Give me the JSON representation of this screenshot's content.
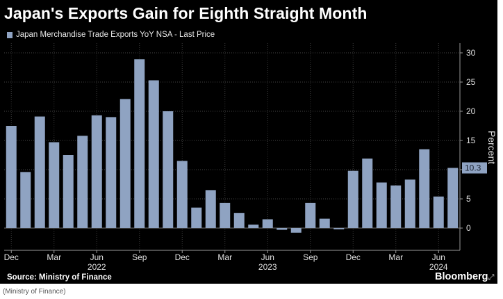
{
  "title": "Japan's Exports Gain for Eighth Straight Month",
  "legend_label": "Japan Merchandise Trade Exports YoY NSA - Last Price",
  "source": "Source: Ministry of Finance",
  "brand": "Bloomberg",
  "caption": "(Ministry of Finance)",
  "colors": {
    "background": "#000000",
    "bar": "#8fa3c2",
    "text": "#ffffff",
    "grid": "#555555"
  },
  "icons": {
    "expand": "expand-icon"
  },
  "chart_data": {
    "type": "bar",
    "title": "Japan's Exports Gain for Eighth Straight Month",
    "series_name": "Japan Merchandise Trade Exports YoY NSA - Last Price",
    "ylabel": "Percent",
    "ylim": [
      -4,
      32
    ],
    "yticks": [
      0,
      5,
      10,
      15,
      20,
      25,
      30
    ],
    "ytick_labels": [
      "0",
      "5",
      "10",
      "15",
      "20",
      "25",
      "30"
    ],
    "grid": true,
    "last_value_label": "10.3",
    "categories": [
      "2021-12",
      "2022-01",
      "2022-02",
      "2022-03",
      "2022-04",
      "2022-05",
      "2022-06",
      "2022-07",
      "2022-08",
      "2022-09",
      "2022-10",
      "2022-11",
      "2022-12",
      "2023-01",
      "2023-02",
      "2023-03",
      "2023-04",
      "2023-05",
      "2023-06",
      "2023-07",
      "2023-08",
      "2023-09",
      "2023-10",
      "2023-11",
      "2023-12",
      "2024-01",
      "2024-02",
      "2024-03",
      "2024-04",
      "2024-05",
      "2024-06",
      "2024-07"
    ],
    "values": [
      17.5,
      9.6,
      19.1,
      14.7,
      12.5,
      15.8,
      19.3,
      19.0,
      22.1,
      28.9,
      25.3,
      20.0,
      11.5,
      3.5,
      6.5,
      4.3,
      2.6,
      0.6,
      1.5,
      -0.3,
      -0.8,
      4.3,
      1.6,
      -0.2,
      9.8,
      11.9,
      7.8,
      7.3,
      8.3,
      13.5,
      5.4,
      10.3
    ],
    "x_tick_labels": [
      {
        "index": 0,
        "label": "Dec"
      },
      {
        "index": 3,
        "label": "Mar"
      },
      {
        "index": 6,
        "label": "Jun"
      },
      {
        "index": 9,
        "label": "Sep"
      },
      {
        "index": 12,
        "label": "Dec"
      },
      {
        "index": 15,
        "label": "Mar"
      },
      {
        "index": 18,
        "label": "Jun"
      },
      {
        "index": 21,
        "label": "Sep"
      },
      {
        "index": 24,
        "label": "Dec"
      },
      {
        "index": 27,
        "label": "Mar"
      },
      {
        "index": 30,
        "label": "Jun"
      }
    ],
    "year_labels": [
      {
        "index": 6,
        "label": "2022"
      },
      {
        "index": 18,
        "label": "2023"
      },
      {
        "index": 30,
        "label": "2024"
      }
    ]
  }
}
